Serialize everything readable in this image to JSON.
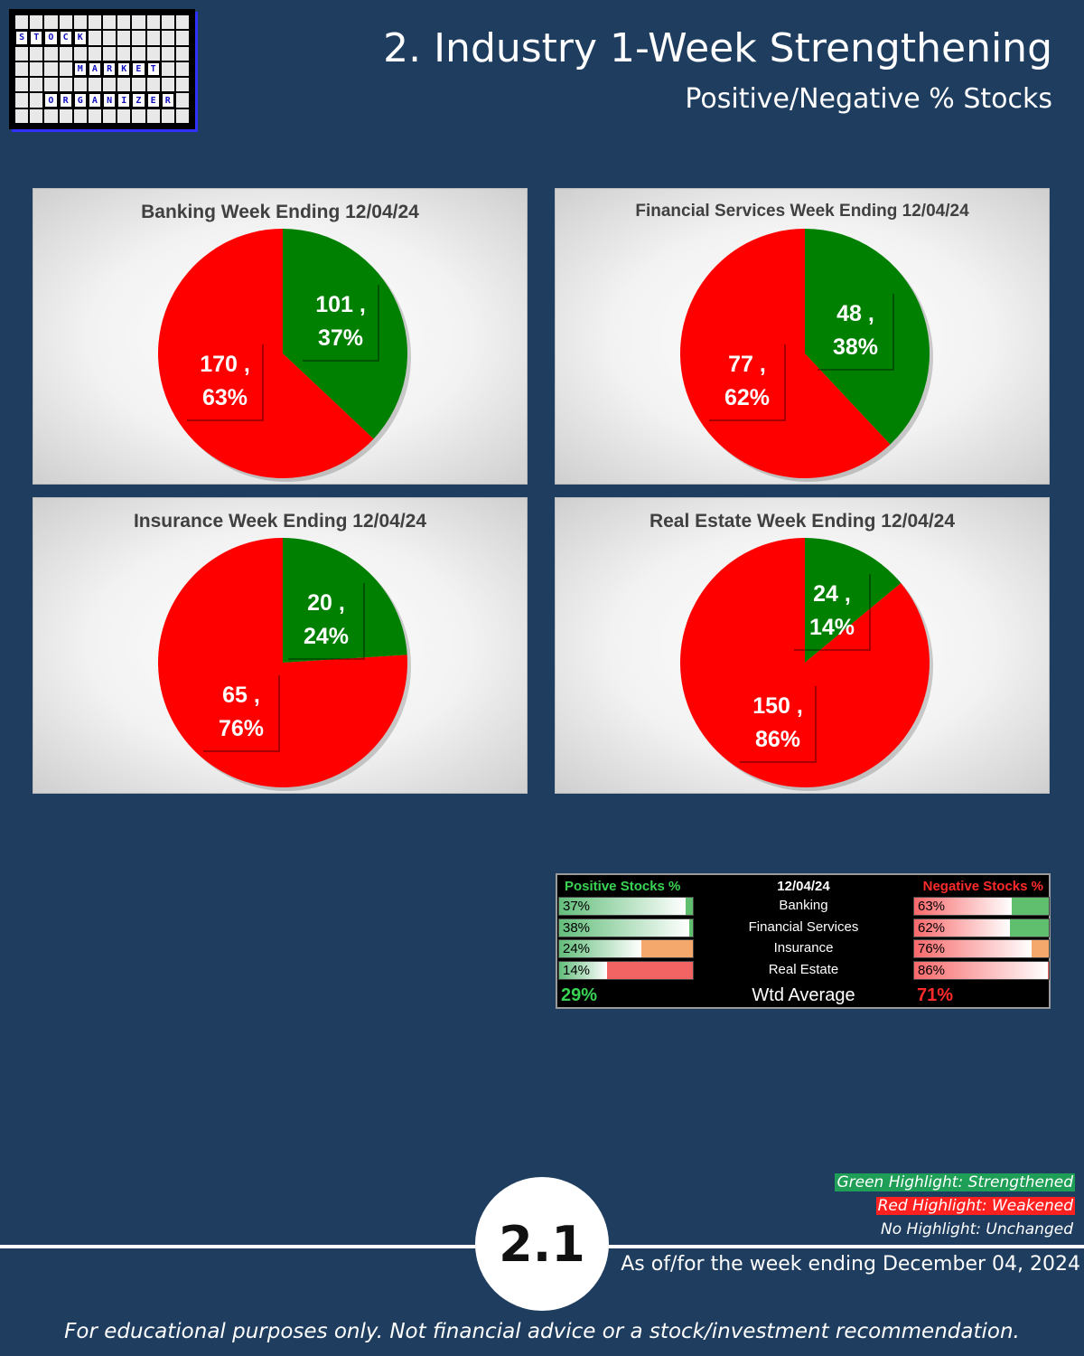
{
  "logo": {
    "words": [
      "STOCK",
      "MARKET",
      "ORGANIZER"
    ]
  },
  "header": {
    "title": "2. Industry 1-Week Strengthening",
    "subtitle": "Positive/Negative % Stocks"
  },
  "colors": {
    "positive": "#008000",
    "negative": "#ff0000",
    "background": "#1e3d5f",
    "positive_text": "#39d353",
    "negative_text": "#ff2a2a"
  },
  "chart_data": [
    {
      "type": "pie",
      "title": "Banking Week Ending 12/04/24",
      "slices": [
        {
          "name": "Positive",
          "count": 101,
          "percent": 37,
          "label": "101 ,",
          "pct_label": "37%",
          "color": "#008000"
        },
        {
          "name": "Negative",
          "count": 170,
          "percent": 63,
          "label": "170 ,",
          "pct_label": "63%",
          "color": "#ff0000"
        }
      ]
    },
    {
      "type": "pie",
      "title": "Financial Services Week Ending 12/04/24",
      "slices": [
        {
          "name": "Positive",
          "count": 48,
          "percent": 38,
          "label": "48 ,",
          "pct_label": "38%",
          "color": "#008000"
        },
        {
          "name": "Negative",
          "count": 77,
          "percent": 62,
          "label": "77 ,",
          "pct_label": "62%",
          "color": "#ff0000"
        }
      ]
    },
    {
      "type": "pie",
      "title": "Insurance Week Ending 12/04/24",
      "slices": [
        {
          "name": "Positive",
          "count": 20,
          "percent": 24,
          "label": "20 ,",
          "pct_label": "24%",
          "color": "#008000"
        },
        {
          "name": "Negative",
          "count": 65,
          "percent": 76,
          "label": "65 ,",
          "pct_label": "76%",
          "color": "#ff0000"
        }
      ]
    },
    {
      "type": "pie",
      "title": "Real Estate Week Ending 12/04/24",
      "slices": [
        {
          "name": "Positive",
          "count": 24,
          "percent": 14,
          "label": "24 ,",
          "pct_label": "14%",
          "color": "#008000"
        },
        {
          "name": "Negative",
          "count": 150,
          "percent": 86,
          "label": "150 ,",
          "pct_label": "86%",
          "color": "#ff0000"
        }
      ]
    },
    {
      "type": "table",
      "header_positive": "Positive Stocks %",
      "header_date": "12/04/24",
      "header_negative": "Negative Stocks %",
      "rows": [
        {
          "industry": "Banking",
          "positive": "37%",
          "positive_value": 37,
          "negative": "63%",
          "negative_value": 63,
          "change": "strengthened"
        },
        {
          "industry": "Financial Services",
          "positive": "38%",
          "positive_value": 38,
          "negative": "62%",
          "negative_value": 62,
          "change": "strengthened"
        },
        {
          "industry": "Insurance",
          "positive": "24%",
          "positive_value": 24,
          "negative": "76%",
          "negative_value": 76,
          "change": "unchanged"
        },
        {
          "industry": "Real Estate",
          "positive": "14%",
          "positive_value": 14,
          "negative": "86%",
          "negative_value": 86,
          "change": "weakened"
        }
      ],
      "avg_label": "Wtd Average",
      "avg_positive": "29%",
      "avg_negative": "71%"
    }
  ],
  "legend": {
    "green": "Green Highlight: Strengthened",
    "red": "Red Highlight: Weakened",
    "none": "No Highlight: Unchanged",
    "green_color": "#1f9e57",
    "red_color": "#ff2020"
  },
  "page_number": "2.1",
  "as_of": "As of/for the week ending December 04, 2024",
  "footer": "For educational purposes only. Not financial advice or a stock/investment recommendation."
}
